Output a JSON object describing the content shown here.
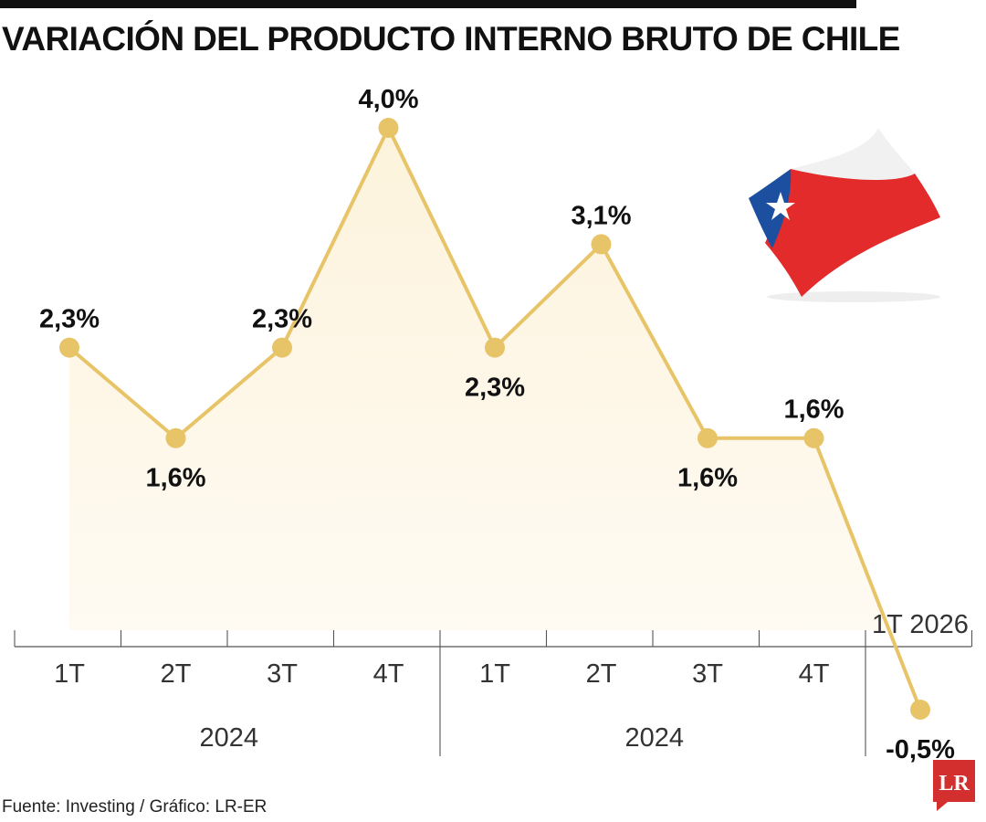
{
  "title": "VARIACIÓN DEL PRODUCTO INTERNO BRUTO DE CHILE",
  "source": "Fuente: Investing / Gráfico: LR-ER",
  "logo": {
    "text": "LR",
    "color": "#d32f2f"
  },
  "colors": {
    "line": "#e8c468",
    "fill": "#fdf3dc",
    "axis": "#555555",
    "flag_red": "#e32b2b",
    "flag_blue": "#1d4fa0",
    "flag_white": "#f2f2f2"
  },
  "chart_data": {
    "type": "line",
    "categories": [
      "1T",
      "2T",
      "3T",
      "4T",
      "1T",
      "2T",
      "3T",
      "4T",
      "1T 2026"
    ],
    "groups": [
      {
        "label": "2024",
        "start": 0,
        "end": 3
      },
      {
        "label": "2024",
        "start": 4,
        "end": 7
      }
    ],
    "values": [
      2.3,
      1.6,
      2.3,
      4.0,
      2.3,
      3.1,
      1.6,
      1.6,
      -0.5
    ],
    "data_labels": [
      "2,3%",
      "1,6%",
      "2,3%",
      "4,0%",
      "2,3%",
      "3,1%",
      "1,6%",
      "1,6%",
      "-0,5%"
    ],
    "label_positions": [
      "above",
      "below",
      "above",
      "above",
      "below",
      "above",
      "below",
      "above",
      "below"
    ],
    "ylim": [
      -0.5,
      4.0
    ],
    "grid": false,
    "xlabel": "",
    "ylabel": ""
  }
}
